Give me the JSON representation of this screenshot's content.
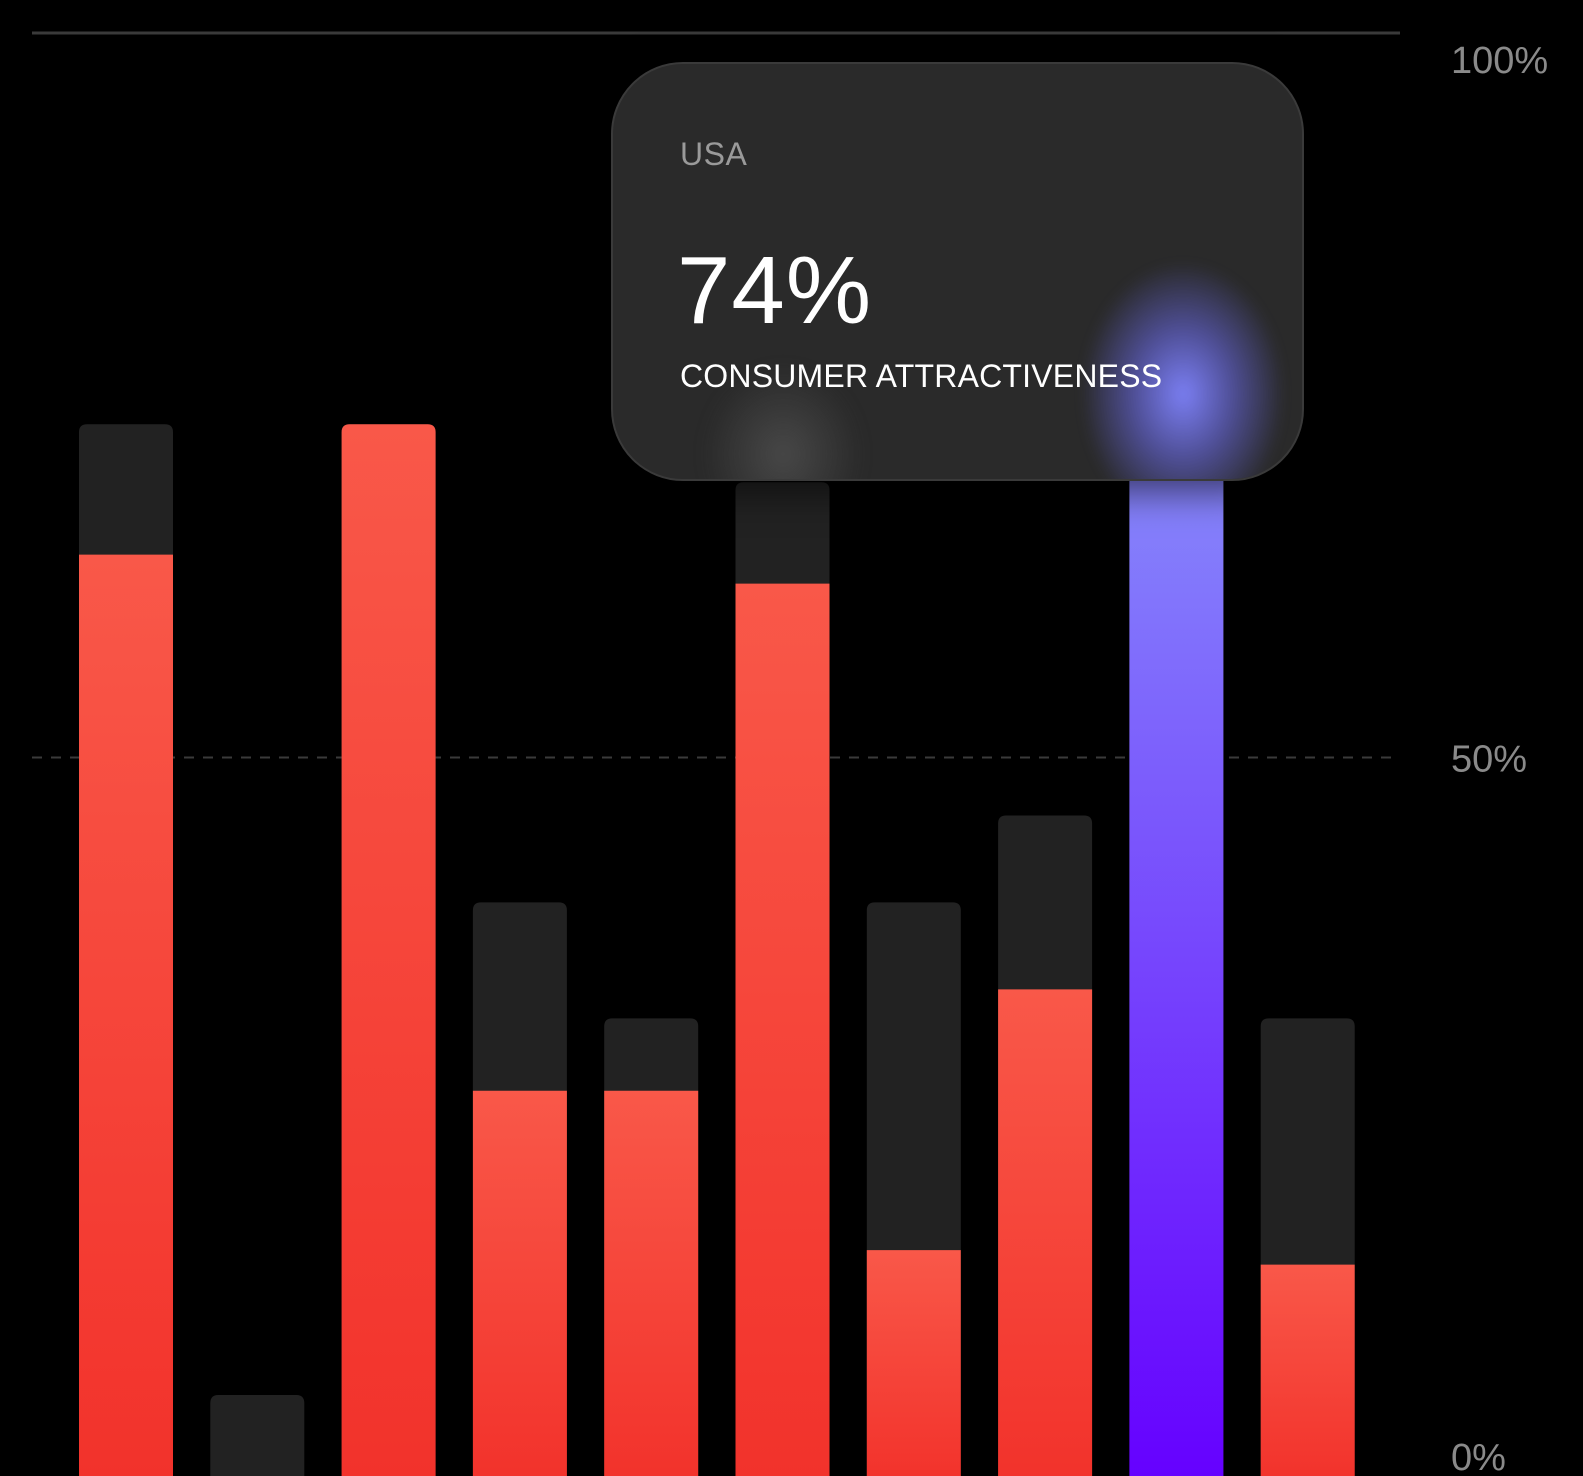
{
  "chart_data": {
    "type": "bar",
    "orientation": "vertical",
    "stacked_background": true,
    "categories": [
      "",
      "",
      "",
      "",
      "",
      "",
      "",
      "",
      "",
      ""
    ],
    "values": [
      64,
      0,
      73,
      27,
      27,
      62,
      16,
      34,
      70,
      15
    ],
    "background_values": [
      73,
      6,
      73,
      40,
      32,
      69,
      40,
      46,
      74,
      32
    ],
    "highlighted_index": 8,
    "title": "",
    "xlabel": "",
    "ylabel": "",
    "ylim": [
      0,
      100
    ],
    "yticks": [
      {
        "value": 100,
        "label": "100%"
      },
      {
        "value": 50,
        "label": "50%"
      },
      {
        "value": 0,
        "label": "0%"
      }
    ],
    "gridlines": [
      {
        "value": 100,
        "style": "solid"
      },
      {
        "value": 50,
        "style": "dashed"
      }
    ],
    "grid": true,
    "legend": "none",
    "tooltip": {
      "country": "USA",
      "value": "74%",
      "metric": "CONSUMER ATTRACTIVENESS"
    },
    "colors": {
      "background": "#000000",
      "bar_bg": "#222222",
      "bar_top": "#f95849",
      "bar_bottom": "#f2322b",
      "highlight_top": "#8686fb",
      "highlight_bottom": "#6500ff",
      "gridline": "#3a3a3a",
      "tick_text": "#8a8a8a"
    }
  }
}
